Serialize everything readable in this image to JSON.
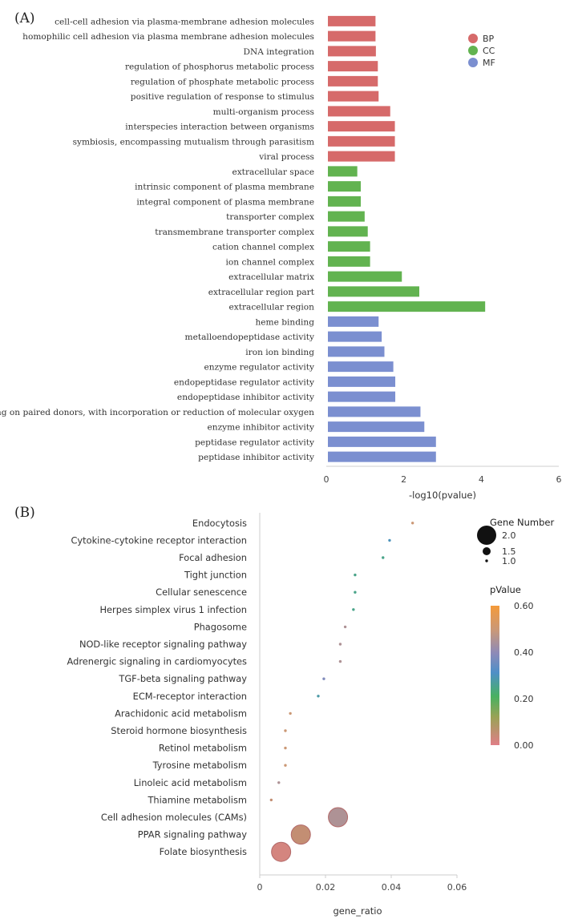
{
  "chart_data": [
    {
      "panel": "(A)",
      "type": "bar",
      "orientation": "horizontal",
      "xlabel": "-log10(pvalue)",
      "xlim": [
        0,
        6
      ],
      "xticks": [
        "0",
        "2",
        "4",
        "6"
      ],
      "legend": [
        {
          "name": "BP",
          "color": "#d66a6a"
        },
        {
          "name": "CC",
          "color": "#62b350"
        },
        {
          "name": "MF",
          "color": "#7b8fd0"
        }
      ],
      "categories": [
        "cell-cell adhesion via plasma-membrane adhesion molecules",
        "homophilic cell adhesion via plasma membrane adhesion molecules",
        "DNA integration",
        "regulation of phosphorus metabolic process",
        "regulation of phosphate metabolic process",
        "positive regulation of response to stimulus",
        "multi-organism process",
        "interspecies interaction between organisms",
        "symbiosis, encompassing mutualism through parasitism",
        "viral process",
        "extracellular space",
        "intrinsic component of plasma membrane",
        "integral component of plasma membrane",
        "transporter complex",
        "transmembrane transporter complex",
        "cation channel complex",
        "ion channel complex",
        "extracellular matrix",
        "extracellular region part",
        "extracellular region",
        "heme binding",
        "metalloendopeptidase activity",
        "iron ion binding",
        "enzyme regulator activity",
        "endopeptidase regulator activity",
        "endopeptidase inhibitor activity",
        "acting on paired donors, with incorporation or reduction of molecular oxygen",
        "enzyme inhibitor activity",
        "peptidase regulator activity",
        "peptidase inhibitor activity"
      ],
      "values": [
        1.27,
        1.27,
        1.28,
        1.33,
        1.33,
        1.35,
        1.65,
        1.77,
        1.77,
        1.77,
        0.8,
        0.89,
        0.89,
        0.99,
        1.07,
        1.13,
        1.13,
        1.95,
        2.4,
        4.1,
        1.35,
        1.43,
        1.5,
        1.73,
        1.78,
        1.78,
        2.43,
        2.53,
        2.83,
        2.83
      ],
      "groups": [
        "BP",
        "BP",
        "BP",
        "BP",
        "BP",
        "BP",
        "BP",
        "BP",
        "BP",
        "BP",
        "CC",
        "CC",
        "CC",
        "CC",
        "CC",
        "CC",
        "CC",
        "CC",
        "CC",
        "CC",
        "MF",
        "MF",
        "MF",
        "MF",
        "MF",
        "MF",
        "MF",
        "MF",
        "MF",
        "MF"
      ]
    },
    {
      "panel": "(B)",
      "type": "scatter",
      "xlabel": "gene_ratio",
      "xlim": [
        0,
        0.06
      ],
      "xticks": [
        "0",
        "0.02",
        "0.04",
        "0.06"
      ],
      "size_legend": {
        "title": "Gene Number",
        "levels": [
          "2.0",
          "1.5",
          "1.0"
        ]
      },
      "color_legend": {
        "title": "pValue",
        "ticks": [
          "0.60",
          "0.40",
          "0.20",
          "0.00"
        ],
        "range": [
          0,
          0.6
        ]
      },
      "categories": [
        "Endocytosis",
        "Cytokine-cytokine receptor interaction",
        "Focal adhesion",
        "Tight junction",
        "Cellular senescence",
        "Herpes simplex virus 1 infection",
        "Phagosome",
        "NOD-like receptor signaling pathway",
        "Adrenergic signaling in cardiomyocytes",
        "TGF-beta signaling pathway",
        "ECM-receptor interaction",
        "Arachidonic acid metabolism",
        "Steroid hormone biosynthesis",
        "Retinol metabolism",
        "Tyrosine metabolism",
        "Linoleic acid metabolism",
        "Thiamine metabolism",
        "Cell adhesion molecules (CAMs)",
        "PPAR signaling pathway",
        "Folate biosynthesis"
      ],
      "x": [
        0.0465,
        0.0395,
        0.0375,
        0.029,
        0.029,
        0.0285,
        0.026,
        0.0245,
        0.0245,
        0.0195,
        0.0178,
        0.0093,
        0.0078,
        0.0078,
        0.0078,
        0.0058,
        0.0035,
        0.0238,
        0.0125,
        0.0065
      ],
      "gene_number": [
        1,
        1,
        1,
        1,
        1,
        1,
        1,
        1,
        1,
        1,
        1,
        1,
        1,
        1,
        1,
        1,
        1,
        2,
        2,
        2
      ],
      "pvalue": [
        0.5,
        0.3,
        0.25,
        0.25,
        0.25,
        0.25,
        0.45,
        0.45,
        0.45,
        0.38,
        0.28,
        0.5,
        0.5,
        0.5,
        0.5,
        0.45,
        0.05,
        0.45,
        0.05,
        0.02
      ]
    }
  ]
}
